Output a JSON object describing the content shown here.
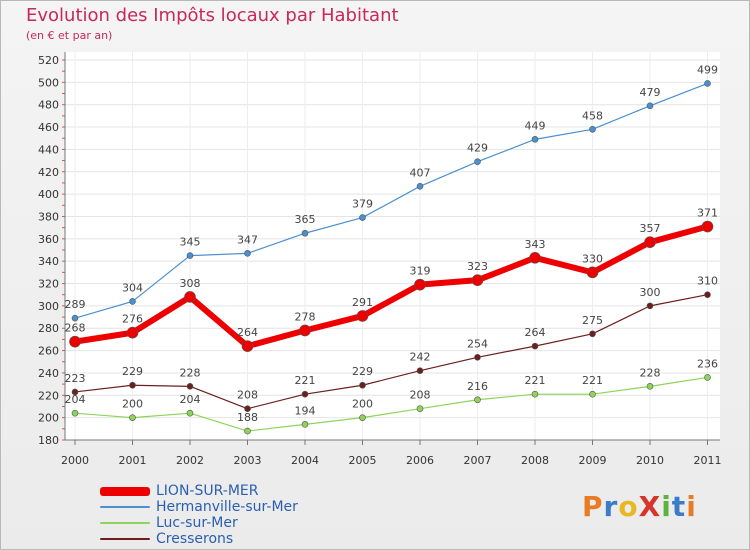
{
  "title": "Evolution des Impôts locaux par Habitant",
  "subtitle": "(en € et par an)",
  "logo": {
    "text": "ProXiti",
    "letter_colors": [
      "#e87b24",
      "#3a7cc8",
      "#e8b824",
      "#d8342c",
      "#5ab43c",
      "#3a7cc8",
      "#e87b24"
    ]
  },
  "chart_data": {
    "type": "line",
    "title": "Evolution des Impôts locaux par Habitant",
    "subtitle": "(en € et par an)",
    "xlabel": "",
    "ylabel": "",
    "categories": [
      "2000",
      "2001",
      "2002",
      "2003",
      "2004",
      "2005",
      "2006",
      "2007",
      "2008",
      "2009",
      "2010",
      "2011"
    ],
    "ylim": [
      180,
      520
    ],
    "yticks": [
      180,
      200,
      220,
      240,
      260,
      280,
      300,
      320,
      340,
      360,
      380,
      400,
      420,
      440,
      460,
      480,
      500,
      520
    ],
    "grid": true,
    "legend_position": "bottom-left",
    "series": [
      {
        "name": "Hermanville-sur-Mer",
        "color": "#4a90d0",
        "values": [
          289,
          304,
          345,
          347,
          365,
          379,
          407,
          429,
          449,
          458,
          479,
          499
        ]
      },
      {
        "name": "Cresserons",
        "color": "#6b1f1f",
        "values": [
          223,
          229,
          228,
          208,
          221,
          229,
          242,
          254,
          264,
          275,
          300,
          310
        ]
      },
      {
        "name": "Luc-sur-Mer",
        "color": "#8ed45a",
        "values": [
          204,
          200,
          204,
          188,
          194,
          200,
          208,
          216,
          221,
          221,
          228,
          236
        ]
      },
      {
        "name": "LION-SUR-MER",
        "color": "#ee0000",
        "values": [
          268,
          276,
          308,
          264,
          278,
          291,
          319,
          323,
          343,
          330,
          357,
          371
        ]
      }
    ],
    "legend_order": [
      "LION-SUR-MER",
      "Hermanville-sur-Mer",
      "Luc-sur-Mer",
      "Cresserons"
    ]
  }
}
